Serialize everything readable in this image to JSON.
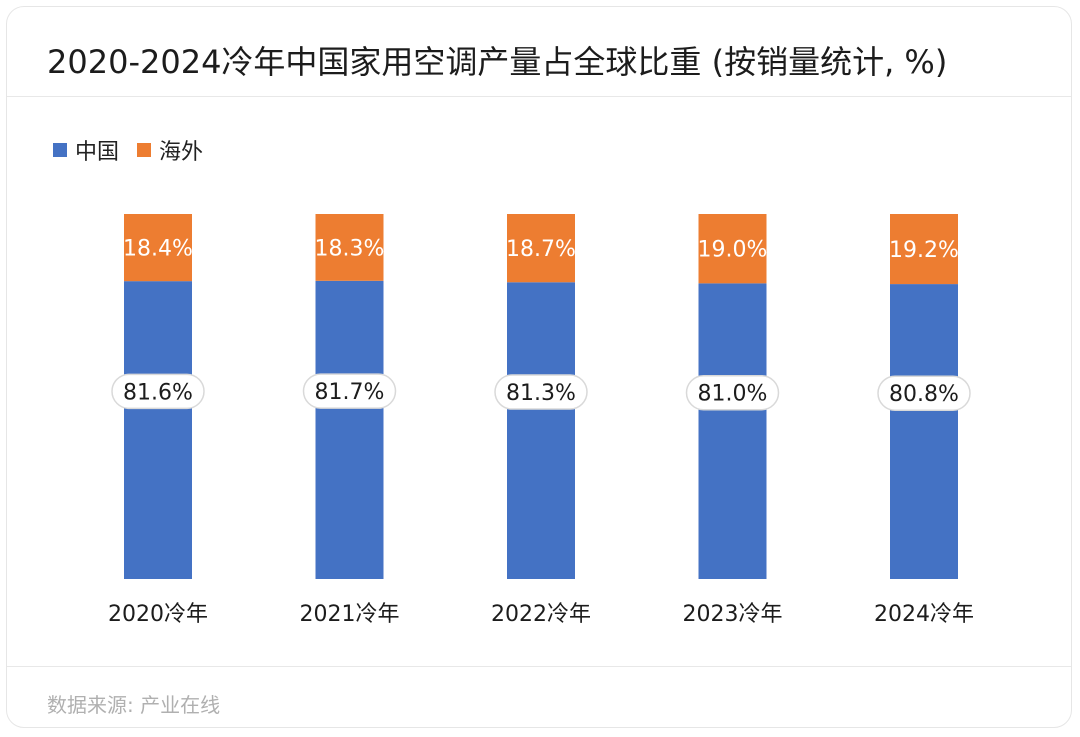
{
  "title": "2020-2024冷年中国家用空调产量占全球比重 (按销量统计, %)",
  "source": "数据来源: 产业在线",
  "colors": {
    "china": "#4472c4",
    "overseas": "#ed7d31"
  },
  "chart_data": {
    "type": "bar",
    "stacked": true,
    "title": "2020-2024冷年中国家用空调产量占全球比重 (按销量统计, %)",
    "categories": [
      "2020冷年",
      "2021冷年",
      "2022冷年",
      "2023冷年",
      "2024冷年"
    ],
    "series": [
      {
        "name": "中国",
        "values": [
          81.6,
          81.7,
          81.3,
          81.0,
          80.8
        ],
        "labels": [
          "81.6%",
          "81.7%",
          "81.3%",
          "81.0%",
          "80.8%"
        ]
      },
      {
        "name": "海外",
        "values": [
          18.4,
          18.3,
          18.7,
          19.0,
          19.2
        ],
        "labels": [
          "18.4%",
          "18.3%",
          "18.7%",
          "19.0%",
          "19.2%"
        ]
      }
    ],
    "ylim": [
      0,
      100
    ],
    "legend": "top-left",
    "xlabel": "",
    "ylabel": ""
  }
}
